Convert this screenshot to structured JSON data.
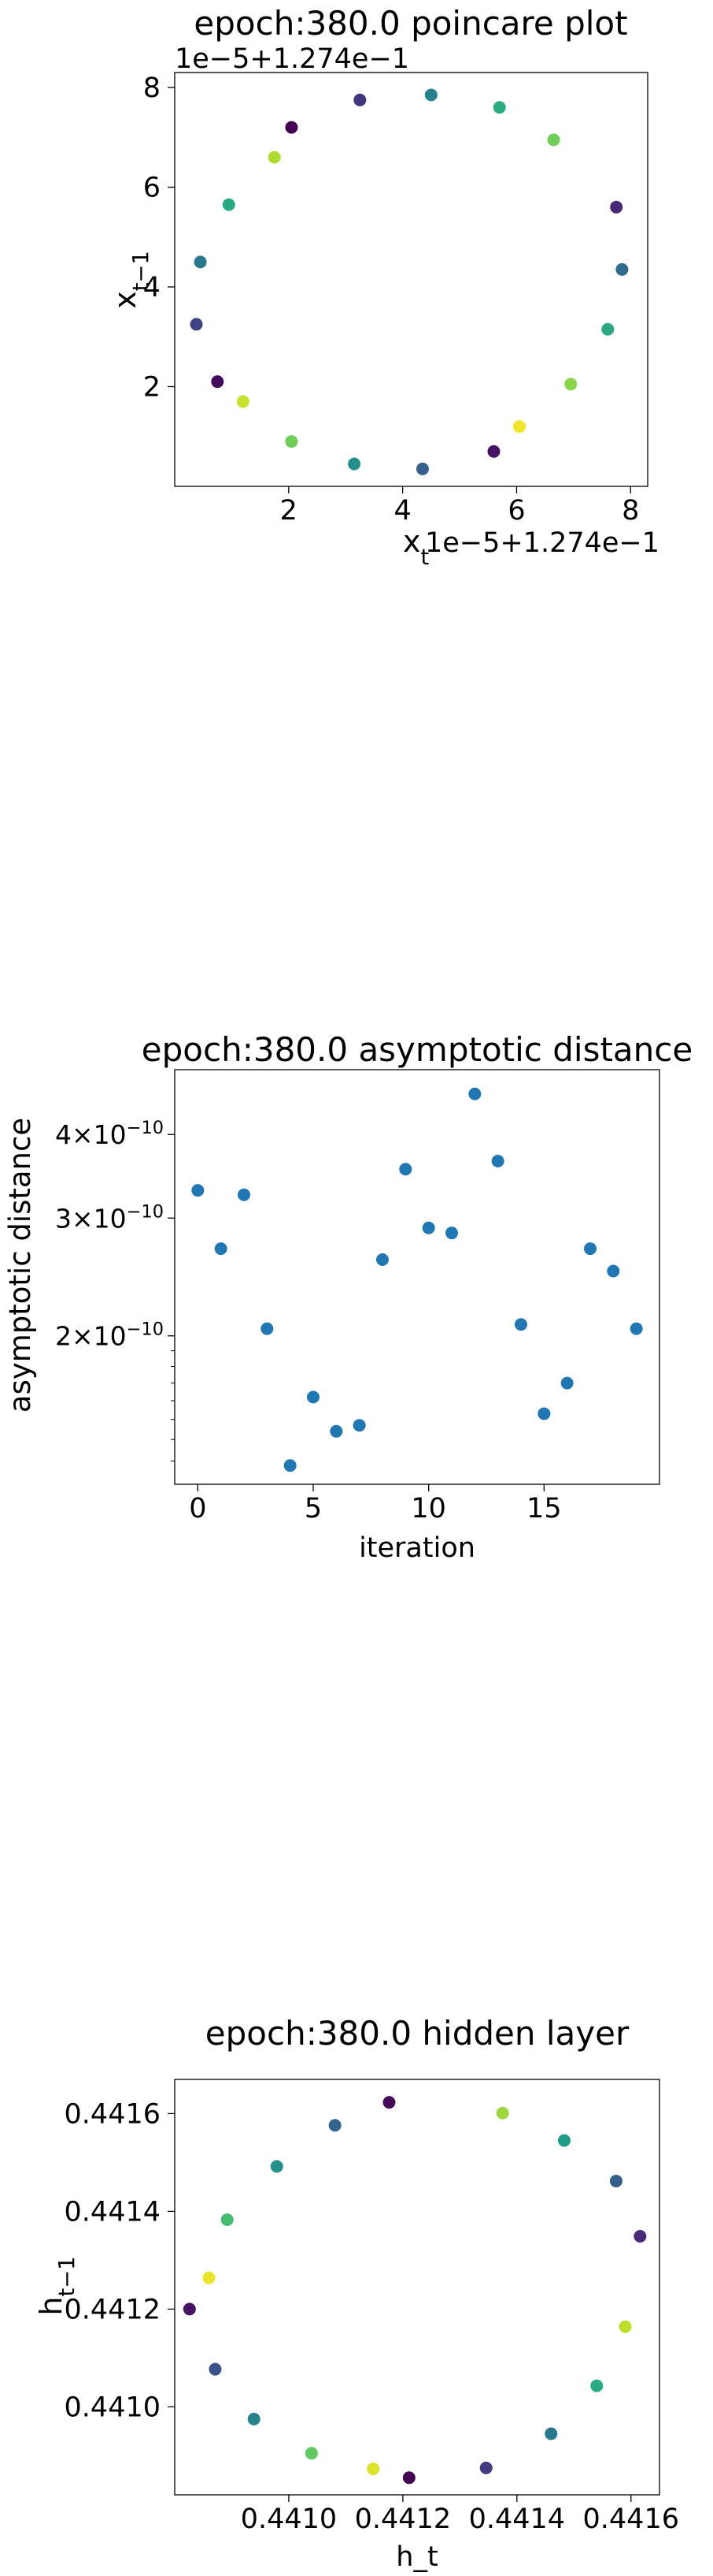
{
  "chart_data": [
    {
      "type": "scatter",
      "title": "epoch:380.0 poincare plot",
      "xlabel": "x_t",
      "ylabel": "x_{t-1}",
      "offset_label": "1e−5+1.274e−1",
      "x_ticks": [
        "2",
        "4",
        "6",
        "8"
      ],
      "y_ticks": [
        "2",
        "4",
        "6",
        "8"
      ],
      "xlim": [
        0.0,
        8.3
      ],
      "ylim": [
        0.0,
        8.3
      ],
      "grid": false,
      "colormap": "viridis",
      "points": [
        {
          "x": 2.05,
          "y": 7.2,
          "c": 0.0
        },
        {
          "x": 3.25,
          "y": 7.75,
          "c": 0.15
        },
        {
          "x": 4.5,
          "y": 7.85,
          "c": 0.45
        },
        {
          "x": 5.7,
          "y": 7.6,
          "c": 0.62
        },
        {
          "x": 6.65,
          "y": 6.95,
          "c": 0.78
        },
        {
          "x": 7.75,
          "y": 5.6,
          "c": 0.12
        },
        {
          "x": 7.85,
          "y": 4.35,
          "c": 0.35
        },
        {
          "x": 7.6,
          "y": 3.15,
          "c": 0.6
        },
        {
          "x": 6.95,
          "y": 2.05,
          "c": 0.82
        },
        {
          "x": 6.05,
          "y": 1.2,
          "c": 0.98
        },
        {
          "x": 5.6,
          "y": 0.7,
          "c": 0.05
        },
        {
          "x": 4.35,
          "y": 0.35,
          "c": 0.3
        },
        {
          "x": 3.15,
          "y": 0.45,
          "c": 0.5
        },
        {
          "x": 2.05,
          "y": 0.9,
          "c": 0.78
        },
        {
          "x": 1.2,
          "y": 1.7,
          "c": 0.92
        },
        {
          "x": 0.75,
          "y": 2.1,
          "c": 0.03
        },
        {
          "x": 0.38,
          "y": 3.25,
          "c": 0.2
        },
        {
          "x": 0.45,
          "y": 4.5,
          "c": 0.4
        },
        {
          "x": 0.95,
          "y": 5.65,
          "c": 0.6
        },
        {
          "x": 1.75,
          "y": 6.6,
          "c": 0.88
        }
      ]
    },
    {
      "type": "scatter",
      "title": "epoch:380.0 asymptotic distance",
      "xlabel": "iteration",
      "ylabel": "asymptotic distance",
      "yscale": "log",
      "x_ticks": [
        "0",
        "5",
        "10",
        "15"
      ],
      "y_ticks": [
        "2×10",
        "3×10",
        "4×10"
      ],
      "y_tick_exponent": "−10",
      "xlim": [
        -1,
        20
      ],
      "ylim": [
        1.2e-10,
        5e-10
      ],
      "grid": false,
      "color": "#1f77b4",
      "points": [
        {
          "x": 0,
          "y": 3.3e-10
        },
        {
          "x": 1,
          "y": 2.7e-10
        },
        {
          "x": 2,
          "y": 3.25e-10
        },
        {
          "x": 3,
          "y": 2.05e-10
        },
        {
          "x": 4,
          "y": 1.28e-10
        },
        {
          "x": 5,
          "y": 1.62e-10
        },
        {
          "x": 6,
          "y": 1.44e-10
        },
        {
          "x": 7,
          "y": 1.47e-10
        },
        {
          "x": 8,
          "y": 2.6e-10
        },
        {
          "x": 9,
          "y": 3.55e-10
        },
        {
          "x": 10,
          "y": 2.9e-10
        },
        {
          "x": 11,
          "y": 2.85e-10
        },
        {
          "x": 12,
          "y": 4.6e-10
        },
        {
          "x": 13,
          "y": 3.65e-10
        },
        {
          "x": 14,
          "y": 2.08e-10
        },
        {
          "x": 15,
          "y": 1.53e-10
        },
        {
          "x": 16,
          "y": 1.7e-10
        },
        {
          "x": 17,
          "y": 2.7e-10
        },
        {
          "x": 18,
          "y": 2.5e-10
        },
        {
          "x": 19,
          "y": 2.05e-10
        }
      ]
    },
    {
      "type": "scatter",
      "title": "epoch:380.0 hidden layer",
      "xlabel": "h_t",
      "ylabel": "h_{t-1}",
      "x_ticks": [
        "0.4410",
        "0.4412",
        "0.4414",
        "0.4416"
      ],
      "y_ticks": [
        "0.4410",
        "0.4412",
        "0.4414",
        "0.4416"
      ],
      "xlim": [
        0.4408,
        0.44165
      ],
      "ylim": [
        0.44082,
        0.44167
      ],
      "grid": false,
      "colormap": "viridis",
      "points": [
        {
          "x": 0.441176,
          "y": 0.441623,
          "c": 0.02
        },
        {
          "x": 0.441375,
          "y": 0.441601,
          "c": 0.85
        },
        {
          "x": 0.441483,
          "y": 0.441545,
          "c": 0.55
        },
        {
          "x": 0.441574,
          "y": 0.441462,
          "c": 0.3
        },
        {
          "x": 0.441616,
          "y": 0.441349,
          "c": 0.12
        },
        {
          "x": 0.44159,
          "y": 0.441164,
          "c": 0.9
        },
        {
          "x": 0.44154,
          "y": 0.441043,
          "c": 0.6
        },
        {
          "x": 0.44146,
          "y": 0.440945,
          "c": 0.4
        },
        {
          "x": 0.441346,
          "y": 0.440875,
          "c": 0.18
        },
        {
          "x": 0.441211,
          "y": 0.440855,
          "c": 0.0
        },
        {
          "x": 0.441148,
          "y": 0.440873,
          "c": 0.95
        },
        {
          "x": 0.44104,
          "y": 0.440905,
          "c": 0.75
        },
        {
          "x": 0.440939,
          "y": 0.440975,
          "c": 0.45
        },
        {
          "x": 0.440871,
          "y": 0.441077,
          "c": 0.25
        },
        {
          "x": 0.440826,
          "y": 0.4412,
          "c": 0.05
        },
        {
          "x": 0.44086,
          "y": 0.441264,
          "c": 0.97
        },
        {
          "x": 0.440892,
          "y": 0.441383,
          "c": 0.7
        },
        {
          "x": 0.440979,
          "y": 0.441492,
          "c": 0.5
        },
        {
          "x": 0.441081,
          "y": 0.441576,
          "c": 0.32
        }
      ]
    }
  ]
}
